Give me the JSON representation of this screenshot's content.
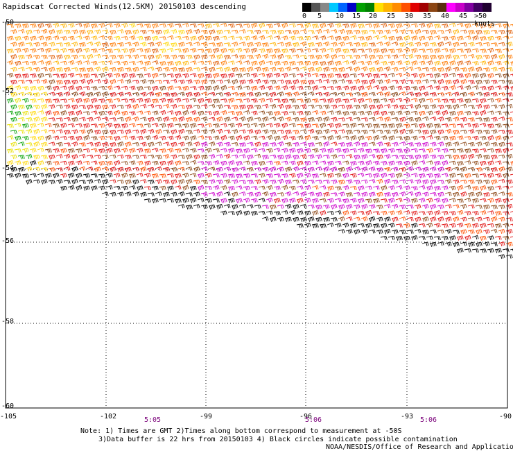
{
  "title": "Rapidscat Corrected Winds(12.5KM) 20150103 descending",
  "legend": {
    "labels": [
      "0",
      "5",
      "10",
      "15",
      "20",
      "25",
      "30",
      "35",
      "40",
      "45",
      ">50 knots"
    ],
    "colors": [
      "#000000",
      "#555555",
      "#888888",
      "#00c8ff",
      "#0064ff",
      "#0000c8",
      "#00a000",
      "#008000",
      "#ffe000",
      "#ffb400",
      "#ff8c00",
      "#ff5000",
      "#e00000",
      "#a00000",
      "#8b4513",
      "#5a2d0c",
      "#ff00ff",
      "#c800c8",
      "#8000a0",
      "#400060",
      "#200030"
    ]
  },
  "axes": {
    "lat_labels": [
      "-50",
      "-52",
      "-54",
      "-56",
      "-58",
      "-60"
    ],
    "lon_labels": [
      "-105",
      "-102",
      "-99",
      "-96",
      "-93",
      "-90"
    ]
  },
  "times": [
    "5:05",
    "5:06",
    "5:06"
  ],
  "notes": {
    "line1": "Note: 1) Times are GMT 2)Times along bottom correspond to measurement at -50S",
    "line2": "3)Data buffer is 22 hrs from 20150103 4) Black circles indicate possible contamination",
    "line3": "NOAA/NESDIS/Office of Research and Applications"
  }
}
